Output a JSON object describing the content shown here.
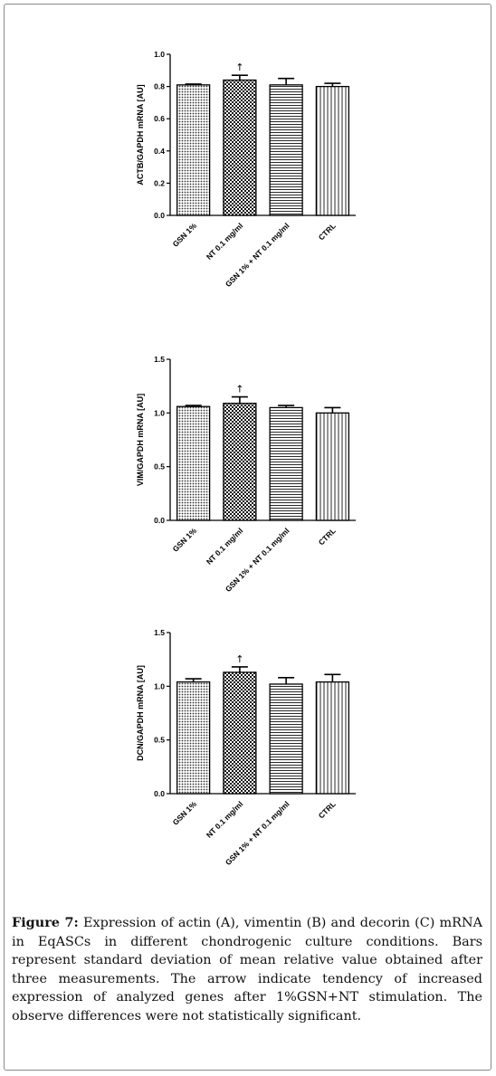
{
  "figure": {
    "caption_label": "Figure 7:",
    "caption_text": "Expression of actin (A), vimentin (B) and decorin (C) mRNA in EqASCs in different chondrogenic culture conditions. Bars represent standard deviation of mean relative value obtained after three measurements. The arrow indicate tendency of increased expression of analyzed genes after 1%GSN+NT stimulation. The observe differences were not statistically significant."
  },
  "colors": {
    "axis": "#000000",
    "bar_stroke": "#000000",
    "frame": "#8a8a8a"
  },
  "chart_data": [
    {
      "type": "bar",
      "categories": [
        "GSN 1%",
        "NT 0.1 mg/ml",
        "GSN 1% + NT 0.1 mg/ml",
        "CTRL"
      ],
      "values": [
        0.81,
        0.84,
        0.81,
        0.8
      ],
      "errors": [
        0.005,
        0.03,
        0.04,
        0.02
      ],
      "bar_patterns": [
        "dots",
        "checker",
        "horizontal-lines",
        "vertical-lines"
      ],
      "arrow_on": "NT 0.1 mg/ml",
      "arrow_glyph": "↑",
      "ylabel": "ACTB/GAPDH mRNA [AU]",
      "ylim": [
        0,
        1.0
      ],
      "yticks": [
        "0.0",
        "0.2",
        "0.4",
        "0.6",
        "0.8",
        "1.0"
      ],
      "ytick_values": [
        0,
        0.2,
        0.4,
        0.6,
        0.8,
        1.0
      ]
    },
    {
      "type": "bar",
      "categories": [
        "GSN 1%",
        "NT 0.1 mg/ml",
        "GSN 1% + NT 0.1 mg/ml",
        "CTRL"
      ],
      "values": [
        1.06,
        1.09,
        1.05,
        1.0
      ],
      "errors": [
        0.01,
        0.06,
        0.02,
        0.05
      ],
      "bar_patterns": [
        "dots",
        "checker",
        "horizontal-lines",
        "vertical-lines"
      ],
      "arrow_on": "NT 0.1 mg/ml",
      "arrow_glyph": "↑",
      "ylabel": "VIM/GAPDH mRNA [AU]",
      "ylim": [
        0,
        1.5
      ],
      "yticks": [
        "0.0",
        "0.5",
        "1.0",
        "1.5"
      ],
      "ytick_values": [
        0,
        0.5,
        1.0,
        1.5
      ]
    },
    {
      "type": "bar",
      "categories": [
        "GSN 1%",
        "NT 0.1 mg/ml",
        "GSN 1% + NT 0.1 mg/ml",
        "CTRL"
      ],
      "values": [
        1.04,
        1.13,
        1.02,
        1.04
      ],
      "errors": [
        0.03,
        0.05,
        0.06,
        0.07
      ],
      "bar_patterns": [
        "dots",
        "checker",
        "horizontal-lines",
        "vertical-lines"
      ],
      "arrow_on": "NT 0.1 mg/ml",
      "arrow_glyph": "↑",
      "ylabel": "DCN/GAPDH mRNA [AU]",
      "ylim": [
        0,
        1.5
      ],
      "yticks": [
        "0.0",
        "0.5",
        "1.0",
        "1.5"
      ],
      "ytick_values": [
        0,
        0.5,
        1.0,
        1.5
      ]
    }
  ]
}
